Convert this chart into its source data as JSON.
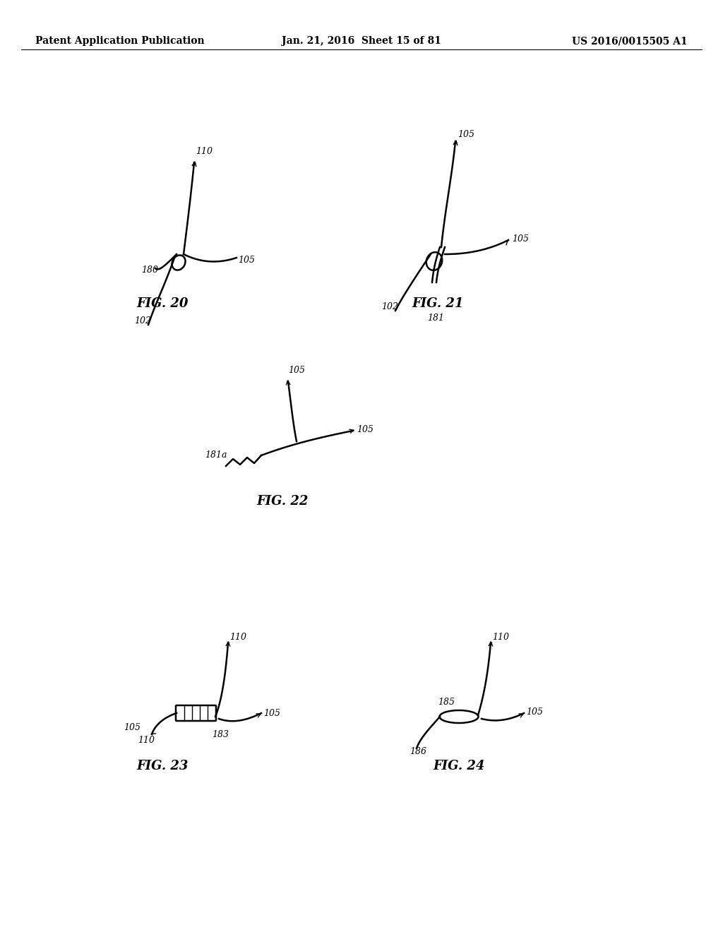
{
  "background_color": "#ffffff",
  "header_left": "Patent Application Publication",
  "header_center": "Jan. 21, 2016  Sheet 15 of 81",
  "header_right": "US 2016/0015505 A1",
  "header_fontsize": 10,
  "fig_labels": [
    "FIG. 20",
    "FIG. 21",
    "FIG. 22",
    "FIG. 23",
    "FIG. 24"
  ],
  "fig_label_fontsize": 13
}
